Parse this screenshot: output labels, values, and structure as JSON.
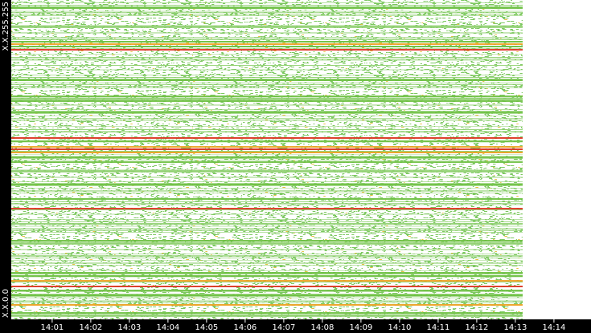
{
  "chart_data": {
    "type": "rowmap",
    "xlim": [
      -0.06,
      14.96
    ],
    "xticks": [
      {
        "value": 1,
        "label": "14:01"
      },
      {
        "value": 2,
        "label": "14:02"
      },
      {
        "value": 3,
        "label": "14:03"
      },
      {
        "value": 4,
        "label": "14:04"
      },
      {
        "value": 5,
        "label": "14:05"
      },
      {
        "value": 6,
        "label": "14:06"
      },
      {
        "value": 7,
        "label": "14:07"
      },
      {
        "value": 8,
        "label": "14:08"
      },
      {
        "value": 9,
        "label": "14:09"
      },
      {
        "value": 10,
        "label": "14:10"
      },
      {
        "value": 11,
        "label": "14:11"
      },
      {
        "value": 12,
        "label": "14:12"
      },
      {
        "value": 13,
        "label": "14:13"
      },
      {
        "value": 14,
        "label": "14:14"
      }
    ],
    "ylim": [
      0,
      65535
    ],
    "yticks": [
      {
        "value": 0,
        "label": "X.X.0.0"
      },
      {
        "value": 65535,
        "label": "X.X.255.255"
      }
    ],
    "series": [
      {
        "color": "#e03020",
        "values": [
          55326,
          37213,
          34908,
          22723,
          6751
        ]
      },
      {
        "color": "#f0a020",
        "values": [
          56478,
          34249,
          35402,
          7904,
          2964
        ]
      },
      {
        "color": "#6cc040",
        "values": [
          56972,
          55984,
          45775,
          44788,
          36554,
          33261,
          32273,
          24699,
          9550,
          8892,
          5928,
          4940,
          63888,
          49069,
          42482,
          27663,
          16137,
          1317
        ]
      }
    ]
  }
}
